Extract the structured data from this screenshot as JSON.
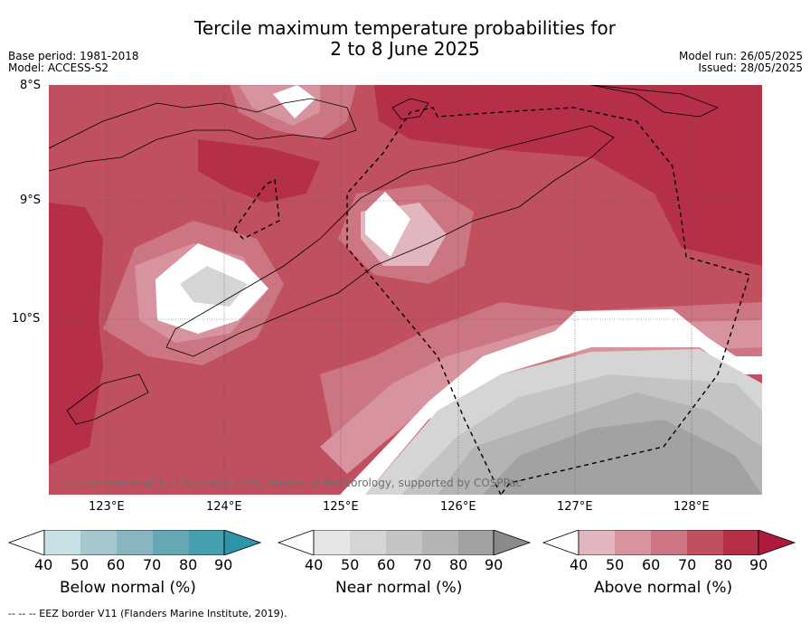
{
  "title": {
    "line1": "Tercile maximum temperature probabilities for",
    "line2": "2 to 8 June 2025"
  },
  "meta": {
    "base_period": "Base period: 1981-2018",
    "model": "Model: ACCESS-S2",
    "model_run": "Model run: 26/05/2025",
    "issued": "Issued: 28/05/2025"
  },
  "map": {
    "lat_labels": [
      "8°S",
      "9°S",
      "10°S"
    ],
    "lon_labels": [
      "123°E",
      "124°E",
      "125°E",
      "126°E",
      "127°E",
      "128°E"
    ],
    "credit": "© Commonwealth of Australia 2025, Bureau of Meteorology, supported by COSPPac"
  },
  "colorbars": [
    {
      "label": "Below normal (%)",
      "ticks": [
        "40",
        "50",
        "60",
        "70",
        "80",
        "90"
      ],
      "colors": [
        "#c6e0e6",
        "#a5c8cf",
        "#88b6c1",
        "#67a6b5",
        "#449fae",
        "#2d95a8"
      ]
    },
    {
      "label": "Near normal (%)",
      "ticks": [
        "40",
        "50",
        "60",
        "70",
        "80",
        "90"
      ],
      "colors": [
        "#e6e6e6",
        "#d5d5d5",
        "#c4c4c4",
        "#b4b4b4",
        "#a2a2a2",
        "#8a8a8a"
      ]
    },
    {
      "label": "Above normal (%)",
      "ticks": [
        "40",
        "50",
        "60",
        "70",
        "80",
        "90"
      ],
      "colors": [
        "#e2b6bf",
        "#d7949f",
        "#cb7682",
        "#c04f5f",
        "#b42f47",
        "#ad1a3b"
      ]
    }
  ],
  "footer": "--  --  -- EEZ border V11 (Flanders Marine Institute, 2019)."
}
